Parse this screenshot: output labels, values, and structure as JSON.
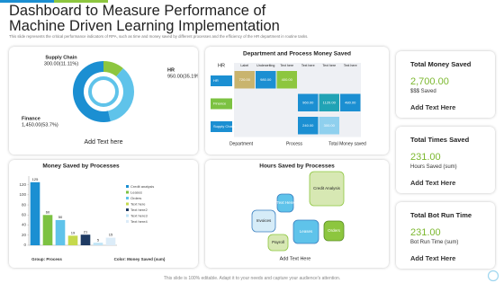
{
  "header": {
    "title": "Dashboard to Measure Performance of Machine Driven Learning Implementation",
    "subtitle": "This slide represents the critical performance indicators of RPA, such as time and money saved by different processes and the efficiency of the HR department in routine tasks."
  },
  "chart_data": [
    {
      "type": "pie",
      "categories": [
        "Supply Chain",
        "HR",
        "Finance"
      ],
      "values": [
        300,
        950,
        1450
      ],
      "value_labels": [
        "300.00(11.11%)",
        "950.00(35.19%)",
        "1,450.00(53.7%)"
      ],
      "colors": [
        "#8dc63f",
        "#5fc3ea",
        "#1b8fd2"
      ],
      "caption": "Add Text here"
    },
    {
      "type": "bar",
      "title": "Money Saved by Processes",
      "categories": [
        "Credit analysis",
        "Leases",
        "Orders",
        "Text here",
        "Text here2",
        "Text here3",
        "Text here4"
      ],
      "values": [
        125,
        60,
        50,
        19,
        21,
        5,
        15
      ],
      "colors": [
        "#1b8fd2",
        "#7cc242",
        "#5fc3ea",
        "#c5d94c",
        "#1f3b63",
        "#bfe3f5",
        "#dcecf8"
      ],
      "ylim": [
        0,
        130
      ],
      "yticks": [
        0,
        20,
        40,
        60,
        80,
        100,
        120
      ],
      "xlabel": "Group: Process",
      "color_label": "Color: Money Saved (sum)"
    }
  ],
  "heatmap": {
    "title": "Department and Process Money Saved",
    "columns": [
      "Label",
      "Underwriting",
      "Text here",
      "Text here",
      "Text here",
      "Text here"
    ],
    "rows": [
      {
        "label": "HR",
        "color": "#1b8fd2",
        "cells": [
          {
            "text": "720.00",
            "color": "#c9b46e"
          },
          {
            "text": "980.00",
            "color": "#1b8fd2"
          },
          {
            "text": "400.00",
            "color": "#8dc63f"
          },
          null,
          null,
          null
        ]
      },
      {
        "label": "Finance",
        "color": "#7cc242",
        "cells": [
          null,
          null,
          null,
          {
            "text": "960.00",
            "color": "#1b8fd2"
          },
          {
            "text": "1120.00",
            "color": "#21a3b5"
          },
          {
            "text": "480.00",
            "color": "#1b8fd2"
          }
        ]
      },
      {
        "label": "Supply Chain",
        "color": "#1b8fd2",
        "cells": [
          null,
          null,
          null,
          {
            "text": "240.00",
            "color": "#1b8fd2"
          },
          {
            "text": "300.00",
            "color": "#8fd0ee"
          },
          null
        ]
      }
    ],
    "footer": [
      "Department",
      "Process",
      "Total Money saved"
    ]
  },
  "bubbles": {
    "title": "Hours Saved by Processes",
    "nodes": [
      "Credit Analysis",
      "Text Here",
      "Invoices",
      "Leases",
      "Orders",
      "Payroll"
    ],
    "caption": "Add Text Here"
  },
  "kpis": [
    {
      "title": "Total Money Saved",
      "value": "2,700.00",
      "caption": "$$$ Saved",
      "note": "Add Text Here"
    },
    {
      "title": "Total Times Saved",
      "value": "231.00",
      "caption": "Hours Saved (sum)",
      "note": "Add Text Here"
    },
    {
      "title": "Total Bot Run Time",
      "value": "231.00",
      "caption": "Bot Run Time (sum)",
      "note": "Add Text Here"
    }
  ],
  "footer": "This slide is 100% editable. Adapt it to your needs and capture your audience's attention."
}
